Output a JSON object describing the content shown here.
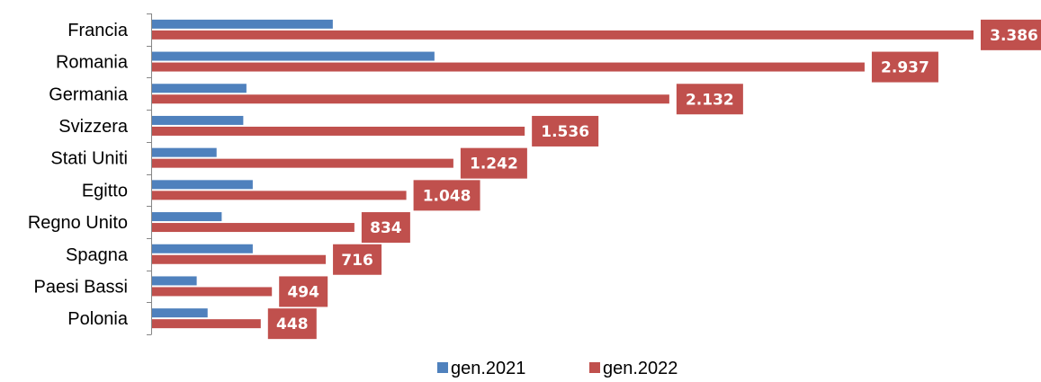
{
  "chart_data": {
    "type": "bar",
    "orientation": "horizontal",
    "categories": [
      "Francia",
      "Romania",
      "Germania",
      "Svizzera",
      "Stati Uniti",
      "Egitto",
      "Regno Unito",
      "Spagna",
      "Paesi Bassi",
      "Polonia"
    ],
    "series": [
      {
        "name": "gen.2021",
        "color": "#4f81bd",
        "values": [
          745,
          1164,
          389,
          376,
          266,
          415,
          287,
          415,
          184,
          229
        ],
        "data_labels": []
      },
      {
        "name": "gen.2022",
        "color": "#c0504d",
        "values": [
          3386,
          2937,
          2132,
          1536,
          1242,
          1048,
          834,
          716,
          494,
          448
        ],
        "data_labels": [
          "3.386",
          "2.937",
          "2.132",
          "1.536",
          "1.242",
          "1.048",
          "834",
          "716",
          "494",
          "448"
        ]
      }
    ],
    "xlim": [
      0,
      3500
    ],
    "grid": false,
    "legend_position": "bottom"
  }
}
